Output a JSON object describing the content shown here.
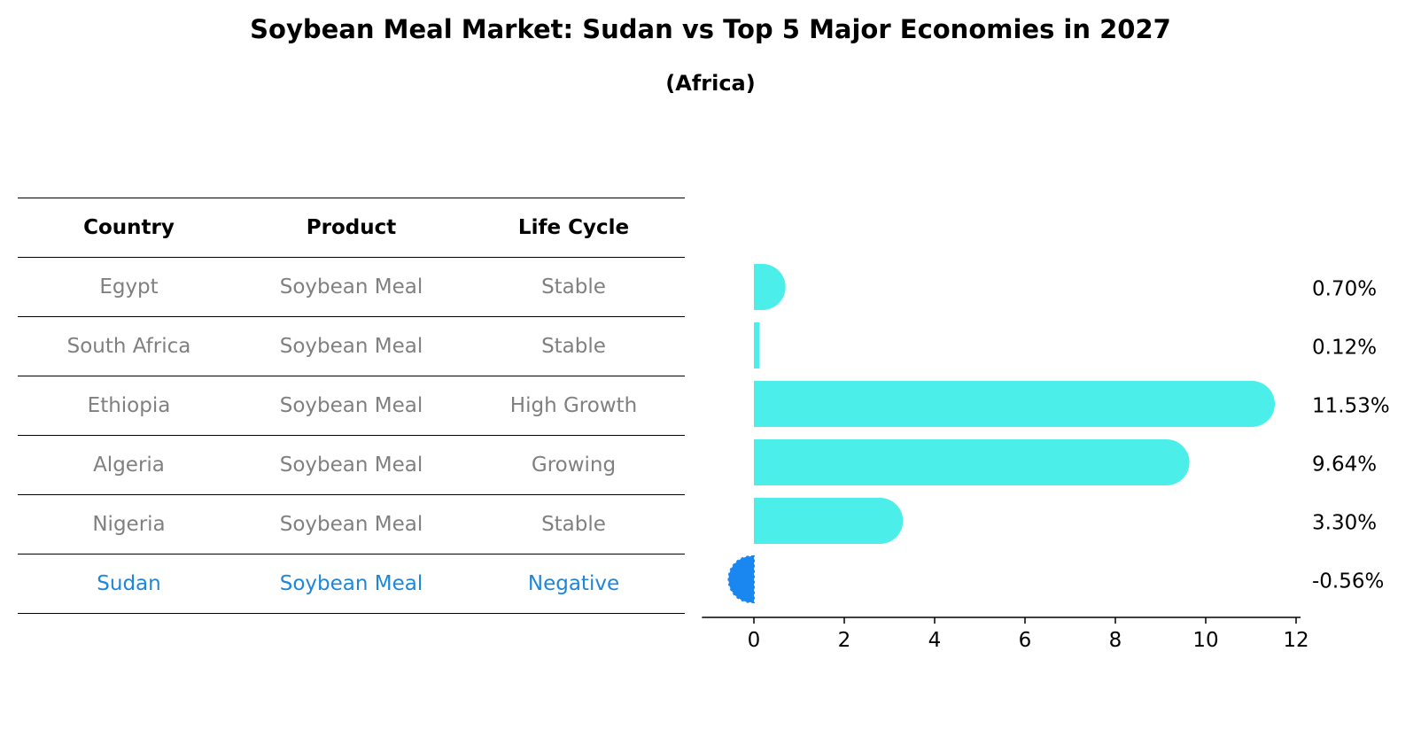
{
  "title": "Soybean Meal Market: Sudan vs Top 5 Major Economies in 2027",
  "subtitle": "(Africa)",
  "table": {
    "headers": [
      "Country",
      "Product",
      "Life Cycle"
    ],
    "rows": [
      {
        "country": "Egypt",
        "product": "Soybean Meal",
        "life_cycle": "Stable"
      },
      {
        "country": "South Africa",
        "product": "Soybean Meal",
        "life_cycle": "Stable"
      },
      {
        "country": "Ethiopia",
        "product": "Soybean Meal",
        "life_cycle": "High Growth"
      },
      {
        "country": "Algeria",
        "product": "Soybean Meal",
        "life_cycle": "Growing"
      },
      {
        "country": "Nigeria",
        "product": "Soybean Meal",
        "life_cycle": "Stable"
      },
      {
        "country": "Sudan",
        "product": "Soybean Meal",
        "life_cycle": "Negative"
      }
    ]
  },
  "colors": {
    "bar": "#4ceeea",
    "highlight": "#1a86f0",
    "muted_text": "#808080",
    "highlight_text": "#1f86d8"
  },
  "chart_data": {
    "type": "bar",
    "orientation": "horizontal",
    "categories": [
      "Egypt",
      "South Africa",
      "Ethiopia",
      "Algeria",
      "Nigeria",
      "Sudan"
    ],
    "values": [
      0.7,
      0.12,
      11.53,
      9.64,
      3.3,
      -0.56
    ],
    "value_labels": [
      "0.70%",
      "0.12%",
      "11.53%",
      "9.64%",
      "3.30%",
      "-0.56%"
    ],
    "highlight": "Sudan",
    "xlim": [
      -1.15,
      12.1
    ],
    "xticks": [
      0,
      2,
      4,
      6,
      8,
      10,
      12
    ],
    "grid": false,
    "legend": "none"
  }
}
